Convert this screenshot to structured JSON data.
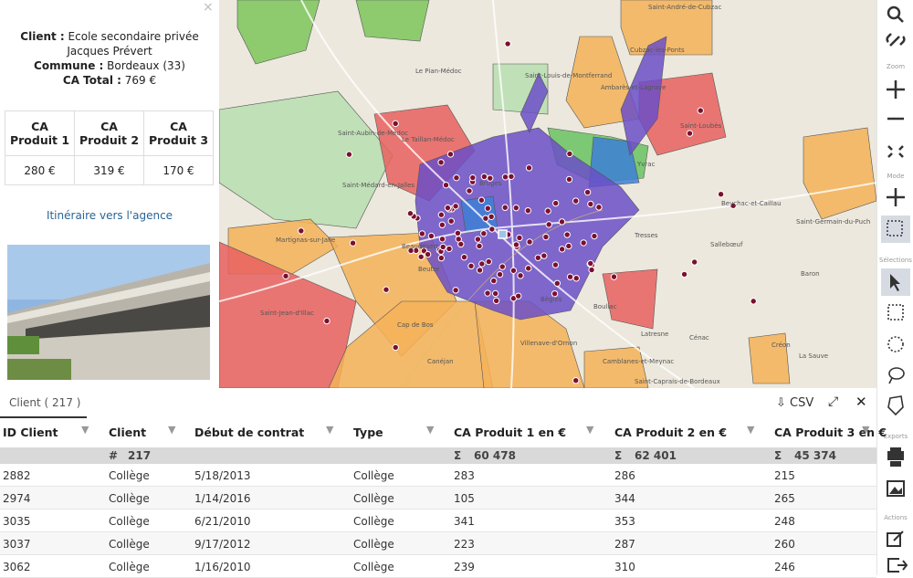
{
  "detail_panel": {
    "client_label": "Client :",
    "client": "Ecole secondaire privée Jacques Prévert",
    "commune_label": "Commune :",
    "commune": "Bordeaux (33)",
    "total_label": "CA Total :",
    "total": "769 €",
    "table": {
      "headers": [
        "CA Produit 1",
        "CA Produit 2",
        "CA Produit 3"
      ],
      "values": [
        "280 €",
        "319 €",
        "170 €"
      ]
    },
    "link": "Itinéraire vers l'agence"
  },
  "map": {
    "labels": [
      "Saint-André-de-Cubzac",
      "Cubzac-les-Ponts",
      "Le Pian-Médoc",
      "Saint-Louis-de-Montferrand",
      "Ambarès-et-Lagrave",
      "Saint-Loubès",
      "Saint-Aubin-de-Médoc",
      "Le Taillan-Médoc",
      "Saint-Médard-en-Jalles",
      "Bruges",
      "Yvrac",
      "Beychac-et-Caillau",
      "Martignas-sur-Jalle",
      "Tresses",
      "Sallebœuf",
      "Saint-Germain-du-Puch",
      "Beaudésert",
      "Saint-Jean-d'Illac",
      "Beutre",
      "Baron",
      "Bouliac",
      "Bègles",
      "Cap de Bos",
      "Latresne",
      "Cénac",
      "Créon",
      "Canéjan",
      "Villenave-d'Ornon",
      "Camblanes-et-Meynac",
      "Saint-Caprais-de-Bordeaux",
      "La Sauve"
    ]
  },
  "toolbar": {
    "sections": [
      "Zoom",
      "Mode",
      "Sélections",
      "Exports",
      "Actions"
    ]
  },
  "grid": {
    "tab": "Client ( 217 )",
    "csv": "CSV",
    "columns": [
      "ID Client",
      "Client",
      "Début de contrat",
      "Type",
      "CA Produit 1 en €",
      "CA Produit 2 en €",
      "CA Produit 3 en €"
    ],
    "summary": {
      "count_symbol": "#",
      "count": "217",
      "sum_symbol": "Σ",
      "sums": [
        "60 478",
        "62 401",
        "45 374"
      ]
    },
    "rows": [
      [
        2882,
        "Collège",
        "5/18/2013",
        "Collège",
        283,
        286,
        215
      ],
      [
        2974,
        "Collège",
        "1/14/2016",
        "Collège",
        105,
        344,
        265
      ],
      [
        3035,
        "Collège",
        "6/21/2010",
        "Collège",
        341,
        353,
        248
      ],
      [
        3037,
        "Collège",
        "9/17/2012",
        "Collège",
        223,
        287,
        260
      ],
      [
        3062,
        "Collège",
        "1/16/2010",
        "Collège",
        239,
        310,
        246
      ]
    ]
  }
}
